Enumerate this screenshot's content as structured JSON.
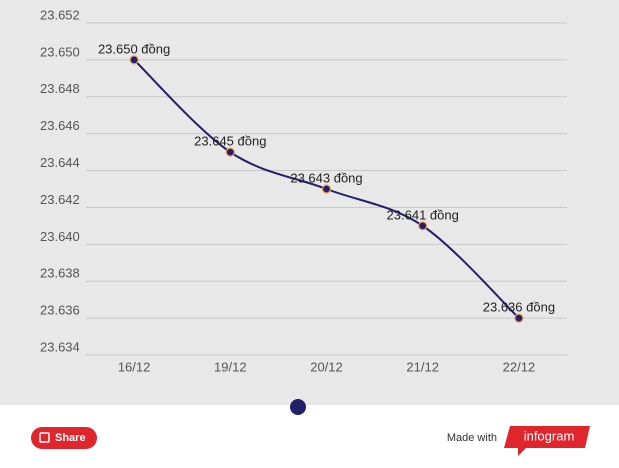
{
  "chart_data": {
    "type": "line",
    "categories": [
      "16/12",
      "19/12",
      "20/12",
      "21/12",
      "22/12"
    ],
    "values": [
      23650,
      23645,
      23643,
      23641,
      23636
    ],
    "value_labels": [
      "23.650 đồng",
      "23.645 đồng",
      "23.643 đồng",
      "23.641 đồng",
      "23.636 đồng"
    ],
    "color": "#231f6b",
    "marker_edge_color": "#e8a35c",
    "ylim": [
      23634,
      23652
    ],
    "yticks": [
      {
        "value": 23634,
        "label": "23.634"
      },
      {
        "value": 23636,
        "label": "23.636"
      },
      {
        "value": 23638,
        "label": "23.638"
      },
      {
        "value": 23640,
        "label": "23.640"
      },
      {
        "value": 23642,
        "label": "23.642"
      },
      {
        "value": 23644,
        "label": "23.644"
      },
      {
        "value": 23646,
        "label": "23.646"
      },
      {
        "value": 23648,
        "label": "23.648"
      },
      {
        "value": 23650,
        "label": "23.650"
      },
      {
        "value": 23652,
        "label": "23.652"
      }
    ],
    "grid": true
  },
  "footer": {
    "share": "Share",
    "made_with": "Made with",
    "brand": "infogram"
  }
}
